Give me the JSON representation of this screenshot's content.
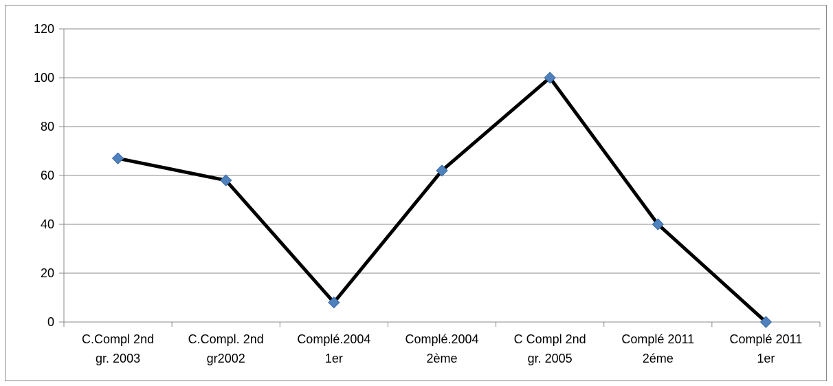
{
  "chart_data": {
    "type": "line",
    "categories": [
      [
        "C.Compl 2nd",
        "gr. 2003"
      ],
      [
        "C.Compl. 2nd",
        "gr2002"
      ],
      [
        "Complé.2004",
        "1er"
      ],
      [
        "Complé.2004",
        "2ème"
      ],
      [
        "C Compl 2nd",
        "gr. 2005"
      ],
      [
        "Complé 2011",
        "2éme"
      ],
      [
        "Complé 2011",
        "1er"
      ]
    ],
    "series": [
      {
        "values": [
          67,
          58,
          8,
          62,
          100,
          40,
          0
        ]
      }
    ],
    "ylim": [
      0,
      120
    ],
    "yticks": [
      0,
      20,
      40,
      60,
      80,
      100,
      120
    ],
    "grid": true,
    "legend": "none",
    "colors": {
      "line": "#000000",
      "marker": "#4F81BD",
      "grid": "#888888"
    },
    "marker": "diamond",
    "title": "",
    "xlabel": "",
    "ylabel": ""
  }
}
